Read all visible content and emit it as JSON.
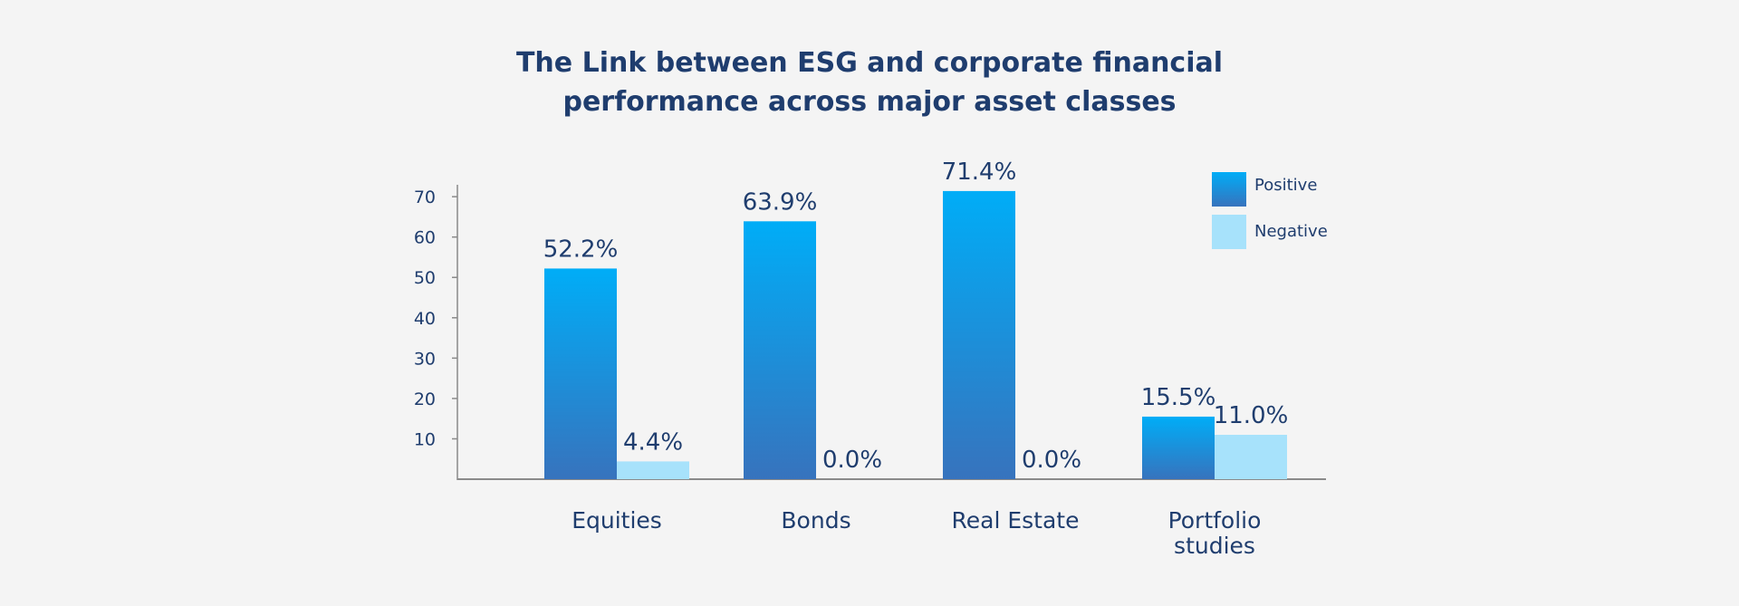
{
  "chart_data": {
    "type": "bar",
    "title": [
      "The Link between ESG and corporate financial",
      "performance across major asset classes"
    ],
    "xlabel": "",
    "ylabel": "",
    "ylim": [
      0,
      74
    ],
    "yticks": [
      10,
      20,
      30,
      40,
      50,
      60,
      70
    ],
    "grid": false,
    "legend_position": "top-right",
    "categories": [
      [
        "Equities"
      ],
      [
        "Bonds"
      ],
      [
        "Real Estate"
      ],
      [
        "Portfolio",
        "studies"
      ]
    ],
    "series": [
      {
        "name": "Positive",
        "values": [
          52.2,
          63.9,
          71.4,
          15.5
        ],
        "labels": [
          "52.2%",
          "63.9%",
          "71.4%",
          "15.5%"
        ],
        "color_top": "#00adf7",
        "color_bottom": "#3773bd"
      },
      {
        "name": "Negative",
        "values": [
          4.4,
          0.0,
          0.0,
          11.0
        ],
        "labels": [
          "4.4%",
          "0.0%",
          "0.0%",
          "11.0%"
        ],
        "color": "#a7e2fb"
      }
    ],
    "text_color": "#1f3d6e",
    "axis_color": "#8a8a8a"
  }
}
